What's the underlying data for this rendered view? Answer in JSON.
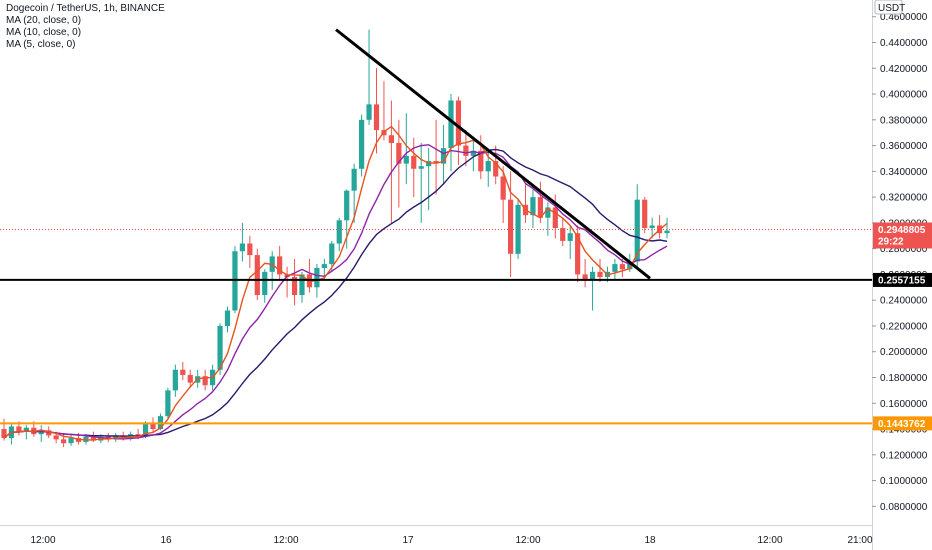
{
  "header": {
    "title": "Dogecoin / TetherUS, 1h, BINANCE",
    "indicators": [
      "MA (20, close, 0)",
      "MA (10, close, 0)",
      "MA (5, close, 0)"
    ]
  },
  "colors": {
    "up": "#26a69a",
    "down": "#ef5350",
    "ma20": "#2a1a6e",
    "ma10": "#8e24aa",
    "ma5": "#e8541e",
    "support": "#000000",
    "orange_line": "#ff9800",
    "price_badge": "#ef5350"
  },
  "chart_data": {
    "type": "candlestick",
    "title": "Dogecoin / TetherUS, 1h, BINANCE",
    "currency": "USDT",
    "ylim": [
      0.065,
      0.47
    ],
    "y_ticks": [
      "0.0800000",
      "0.1000000",
      "0.1200000",
      "0.1400000",
      "0.1600000",
      "0.1800000",
      "0.2000000",
      "0.2200000",
      "0.2400000",
      "0.2600000",
      "0.2800000",
      "0.3000000",
      "0.3200000",
      "0.3400000",
      "0.3600000",
      "0.3800000",
      "0.4000000",
      "0.4200000",
      "0.4400000",
      "0.4600000"
    ],
    "x_ticks": [
      "12:00",
      "16",
      "12:00",
      "17",
      "12:00",
      "18",
      "12:00",
      "21:00"
    ],
    "current_price": 0.2948805,
    "current_price_label": "0.2948805",
    "countdown": "29:22",
    "horizontal_levels": [
      {
        "value": 0.2557155,
        "label": "0.2557155",
        "color": "#000000"
      },
      {
        "value": 0.1443762,
        "label": "0.1443762",
        "color": "#ff9800"
      }
    ],
    "trendline": {
      "from": 0.45,
      "to": 0.257
    },
    "candles": [
      [
        0.14,
        0.148,
        0.131,
        0.133
      ],
      [
        0.133,
        0.145,
        0.128,
        0.142
      ],
      [
        0.142,
        0.146,
        0.135,
        0.138
      ],
      [
        0.138,
        0.143,
        0.132,
        0.141
      ],
      [
        0.141,
        0.146,
        0.134,
        0.136
      ],
      [
        0.136,
        0.143,
        0.13,
        0.139
      ],
      [
        0.139,
        0.142,
        0.133,
        0.135
      ],
      [
        0.135,
        0.138,
        0.129,
        0.132
      ],
      [
        0.132,
        0.137,
        0.126,
        0.129
      ],
      [
        0.129,
        0.136,
        0.127,
        0.133
      ],
      [
        0.133,
        0.137,
        0.128,
        0.13
      ],
      [
        0.13,
        0.136,
        0.128,
        0.134
      ],
      [
        0.134,
        0.138,
        0.13,
        0.131
      ],
      [
        0.131,
        0.136,
        0.129,
        0.134
      ],
      [
        0.134,
        0.137,
        0.13,
        0.132
      ],
      [
        0.132,
        0.137,
        0.13,
        0.135
      ],
      [
        0.135,
        0.138,
        0.131,
        0.133
      ],
      [
        0.133,
        0.138,
        0.131,
        0.136
      ],
      [
        0.136,
        0.14,
        0.132,
        0.134
      ],
      [
        0.134,
        0.146,
        0.133,
        0.144
      ],
      [
        0.144,
        0.149,
        0.138,
        0.14
      ],
      [
        0.14,
        0.152,
        0.139,
        0.15
      ],
      [
        0.15,
        0.172,
        0.148,
        0.17
      ],
      [
        0.17,
        0.19,
        0.165,
        0.186
      ],
      [
        0.186,
        0.192,
        0.178,
        0.182
      ],
      [
        0.182,
        0.186,
        0.172,
        0.176
      ],
      [
        0.176,
        0.186,
        0.172,
        0.181
      ],
      [
        0.181,
        0.186,
        0.17,
        0.174
      ],
      [
        0.174,
        0.19,
        0.17,
        0.186
      ],
      [
        0.186,
        0.222,
        0.182,
        0.22
      ],
      [
        0.22,
        0.235,
        0.215,
        0.232
      ],
      [
        0.232,
        0.282,
        0.23,
        0.278
      ],
      [
        0.278,
        0.3,
        0.27,
        0.284
      ],
      [
        0.284,
        0.29,
        0.265,
        0.275
      ],
      [
        0.275,
        0.28,
        0.24,
        0.244
      ],
      [
        0.244,
        0.264,
        0.238,
        0.262
      ],
      [
        0.262,
        0.278,
        0.248,
        0.274
      ],
      [
        0.274,
        0.282,
        0.255,
        0.26
      ],
      [
        0.26,
        0.266,
        0.242,
        0.258
      ],
      [
        0.258,
        0.272,
        0.236,
        0.244
      ],
      [
        0.244,
        0.262,
        0.238,
        0.26
      ],
      [
        0.26,
        0.272,
        0.246,
        0.25
      ],
      [
        0.25,
        0.268,
        0.242,
        0.265
      ],
      [
        0.265,
        0.272,
        0.256,
        0.268
      ],
      [
        0.268,
        0.286,
        0.262,
        0.284
      ],
      [
        0.284,
        0.304,
        0.278,
        0.302
      ],
      [
        0.302,
        0.326,
        0.28,
        0.325
      ],
      [
        0.325,
        0.346,
        0.3,
        0.342
      ],
      [
        0.342,
        0.384,
        0.336,
        0.38
      ],
      [
        0.38,
        0.45,
        0.376,
        0.392
      ],
      [
        0.392,
        0.42,
        0.354,
        0.372
      ],
      [
        0.372,
        0.41,
        0.364,
        0.368
      ],
      [
        0.368,
        0.395,
        0.3,
        0.362
      ],
      [
        0.362,
        0.38,
        0.312,
        0.346
      ],
      [
        0.346,
        0.385,
        0.33,
        0.352
      ],
      [
        0.352,
        0.366,
        0.32,
        0.342
      ],
      [
        0.342,
        0.362,
        0.3,
        0.344
      ],
      [
        0.344,
        0.358,
        0.31,
        0.348
      ],
      [
        0.348,
        0.38,
        0.322,
        0.346
      ],
      [
        0.346,
        0.376,
        0.33,
        0.358
      ],
      [
        0.358,
        0.4,
        0.34,
        0.395
      ],
      [
        0.395,
        0.398,
        0.345,
        0.36
      ],
      [
        0.36,
        0.372,
        0.344,
        0.352
      ],
      [
        0.352,
        0.365,
        0.34,
        0.356
      ],
      [
        0.356,
        0.368,
        0.334,
        0.34
      ],
      [
        0.34,
        0.355,
        0.328,
        0.348
      ],
      [
        0.348,
        0.36,
        0.33,
        0.336
      ],
      [
        0.336,
        0.344,
        0.3,
        0.318
      ],
      [
        0.318,
        0.34,
        0.258,
        0.276
      ],
      [
        0.276,
        0.318,
        0.272,
        0.314
      ],
      [
        0.314,
        0.33,
        0.3,
        0.306
      ],
      [
        0.306,
        0.326,
        0.296,
        0.32
      ],
      [
        0.32,
        0.332,
        0.3,
        0.304
      ],
      [
        0.304,
        0.316,
        0.29,
        0.312
      ],
      [
        0.312,
        0.322,
        0.288,
        0.296
      ],
      [
        0.296,
        0.304,
        0.282,
        0.286
      ],
      [
        0.286,
        0.298,
        0.272,
        0.292
      ],
      [
        0.292,
        0.298,
        0.254,
        0.26
      ],
      [
        0.26,
        0.272,
        0.25,
        0.256
      ],
      [
        0.256,
        0.266,
        0.232,
        0.262
      ],
      [
        0.262,
        0.272,
        0.254,
        0.258
      ],
      [
        0.258,
        0.266,
        0.254,
        0.262
      ],
      [
        0.262,
        0.272,
        0.256,
        0.268
      ],
      [
        0.268,
        0.272,
        0.258,
        0.264
      ],
      [
        0.264,
        0.276,
        0.262,
        0.27
      ],
      [
        0.27,
        0.33,
        0.266,
        0.318
      ],
      [
        0.318,
        0.32,
        0.292,
        0.296
      ],
      [
        0.296,
        0.304,
        0.288,
        0.298
      ],
      [
        0.298,
        0.306,
        0.288,
        0.292
      ],
      [
        0.292,
        0.304,
        0.288,
        0.294
      ]
    ]
  }
}
